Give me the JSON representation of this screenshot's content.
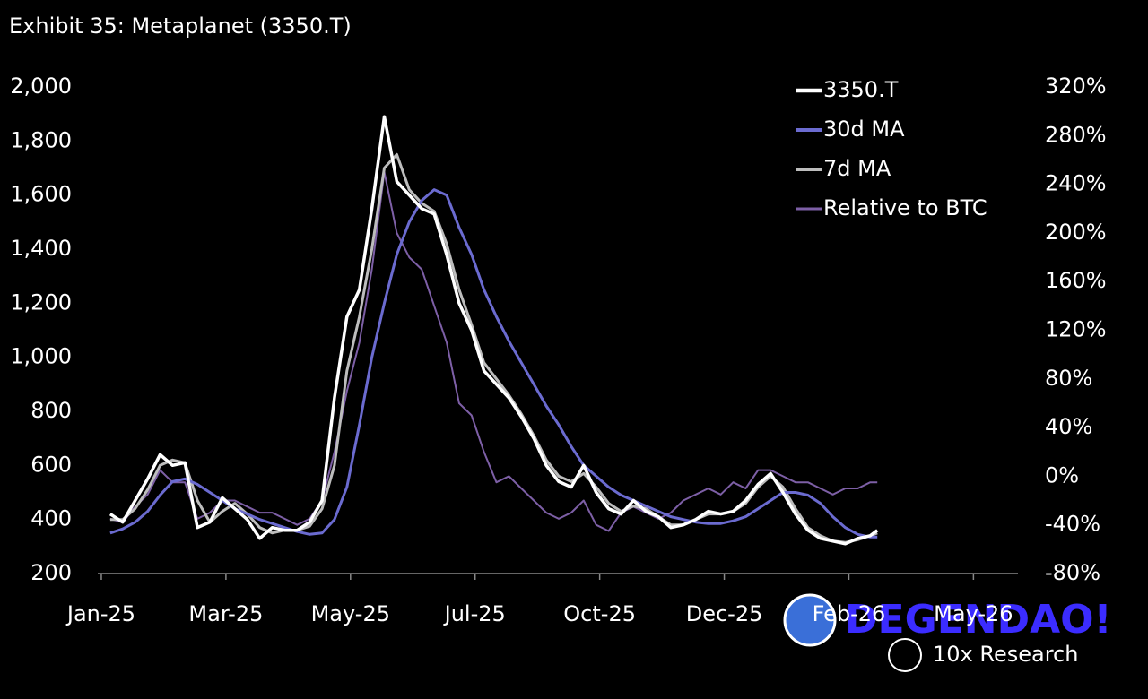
{
  "chart_data": {
    "type": "line",
    "title": "Exhibit 35: Metaplanet (3350.T)",
    "x": [
      5,
      12,
      19,
      26,
      33,
      40,
      47,
      54,
      61,
      68,
      75,
      82,
      89,
      96,
      103,
      110,
      117,
      124,
      131,
      138,
      145,
      152,
      159,
      166,
      173,
      180,
      187,
      194,
      201,
      208,
      215,
      222,
      229,
      236,
      243,
      250,
      257,
      264,
      271,
      278,
      285,
      292,
      299,
      306,
      313,
      320,
      327,
      334,
      341,
      348,
      355,
      362,
      369,
      376,
      383,
      390,
      397,
      404,
      411,
      418,
      425,
      432,
      436
    ],
    "xlim": [
      -2,
      515
    ],
    "xticks": [
      {
        "value": 0,
        "label": "Jan-25"
      },
      {
        "value": 70,
        "label": "Mar-25"
      },
      {
        "value": 140,
        "label": "May-25"
      },
      {
        "value": 210,
        "label": "Jul-25"
      },
      {
        "value": 280,
        "label": "Oct-25"
      },
      {
        "value": 350,
        "label": "Dec-25"
      },
      {
        "value": 420,
        "label": "Feb-26"
      },
      {
        "value": 490,
        "label": "May-26"
      }
    ],
    "ylim": [
      200,
      2000
    ],
    "yticks": [
      200,
      400,
      600,
      800,
      {
        "value": 1000,
        "label": "1,000"
      },
      {
        "value": 1200,
        "label": "1,200"
      },
      {
        "value": 1400,
        "label": "1,400"
      },
      {
        "value": 1600,
        "label": "1,600"
      },
      {
        "value": 1800,
        "label": "1,800"
      },
      {
        "value": 2000,
        "label": "2,000"
      }
    ],
    "y2lim": [
      -80,
      320
    ],
    "y2ticks": [
      {
        "value": -80,
        "label": "-80%"
      },
      {
        "value": -40,
        "label": "-40%"
      },
      {
        "value": 0,
        "label": "0%"
      },
      {
        "value": 40,
        "label": "40%"
      },
      {
        "value": 80,
        "label": "80%"
      },
      {
        "value": 120,
        "label": "120%"
      },
      {
        "value": 160,
        "label": "160%"
      },
      {
        "value": 200,
        "label": "200%"
      },
      {
        "value": 240,
        "label": "240%"
      },
      {
        "value": 280,
        "label": "280%"
      },
      {
        "value": 320,
        "label": "320%"
      }
    ],
    "legend": "top right",
    "series": [
      {
        "name": "3350.T",
        "color": "#ffffff",
        "values": [
          420,
          390,
          470,
          550,
          640,
          600,
          610,
          370,
          390,
          480,
          440,
          400,
          330,
          370,
          360,
          360,
          390,
          470,
          850,
          1150,
          1250,
          1550,
          1890,
          1650,
          1600,
          1550,
          1530,
          1380,
          1200,
          1100,
          950,
          900,
          850,
          780,
          700,
          600,
          540,
          520,
          600,
          500,
          440,
          420,
          470,
          430,
          410,
          370,
          380,
          400,
          430,
          420,
          430,
          470,
          530,
          570,
          500,
          420,
          360,
          330,
          320,
          310,
          330,
          340,
          360
        ]
      },
      {
        "name": "30d MA",
        "color": "#6b6bd0",
        "values": [
          350,
          365,
          390,
          430,
          490,
          540,
          550,
          530,
          500,
          470,
          440,
          420,
          400,
          385,
          370,
          355,
          345,
          350,
          400,
          520,
          750,
          1000,
          1200,
          1380,
          1500,
          1580,
          1620,
          1600,
          1480,
          1380,
          1250,
          1150,
          1060,
          980,
          900,
          820,
          750,
          670,
          600,
          560,
          520,
          490,
          470,
          450,
          430,
          410,
          400,
          390,
          385,
          385,
          395,
          410,
          440,
          470,
          500,
          500,
          490,
          460,
          410,
          370,
          345,
          335,
          335
        ]
      },
      {
        "name": "7d MA",
        "color": "#bdbdbd",
        "values": [
          400,
          400,
          440,
          510,
          600,
          620,
          610,
          470,
          390,
          430,
          460,
          420,
          370,
          350,
          360,
          360,
          375,
          440,
          600,
          950,
          1150,
          1400,
          1700,
          1750,
          1620,
          1570,
          1540,
          1420,
          1250,
          1120,
          980,
          920,
          860,
          790,
          710,
          620,
          560,
          540,
          570,
          520,
          460,
          430,
          450,
          440,
          410,
          380,
          380,
          400,
          420,
          420,
          430,
          460,
          520,
          560,
          520,
          440,
          370,
          340,
          320,
          315,
          325,
          340,
          350
        ]
      },
      {
        "name": "Relative to BTC",
        "color": "#7d5fa6",
        "axis": "y2",
        "values": [
          -35,
          -38,
          -25,
          -15,
          5,
          -5,
          -5,
          -35,
          -30,
          -20,
          -20,
          -25,
          -30,
          -30,
          -35,
          -40,
          -35,
          -20,
          20,
          70,
          110,
          170,
          250,
          200,
          180,
          170,
          140,
          110,
          60,
          50,
          20,
          -5,
          0,
          -10,
          -20,
          -30,
          -35,
          -30,
          -20,
          -40,
          -45,
          -30,
          -25,
          -30,
          -35,
          -30,
          -20,
          -15,
          -10,
          -15,
          -5,
          -10,
          5,
          5,
          0,
          -5,
          -5,
          -10,
          -15,
          -10,
          -10,
          -5,
          -5
        ]
      }
    ],
    "annotations": [
      "DEGENDAO!",
      "10x Research"
    ]
  }
}
